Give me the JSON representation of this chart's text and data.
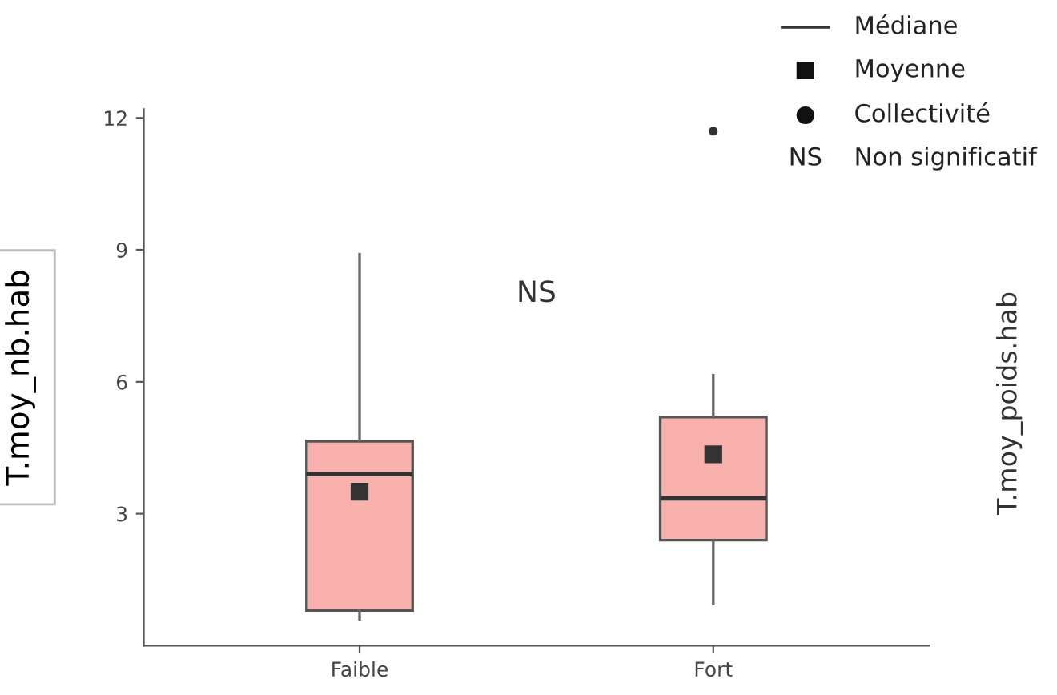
{
  "chart_data": {
    "type": "box",
    "ylabel": "T.moy_nb.hab",
    "y2label": "T.moy_poids.hab",
    "categories": [
      "Faible",
      "Fort"
    ],
    "series": [
      {
        "color": "#f8b1ad",
        "boxes": [
          {
            "low": 0.6,
            "q1": 0.8,
            "median": 3.9,
            "q3": 4.65,
            "high": 8.9,
            "mean": 3.5
          },
          {
            "low": 0.95,
            "q1": 2.4,
            "median": 3.35,
            "q3": 5.2,
            "high": 6.15,
            "mean": 4.35,
            "outliers": [
              11.7
            ]
          }
        ]
      }
    ],
    "ylim": [
      0,
      12.2
    ],
    "yticks": [
      3,
      6,
      9,
      12
    ],
    "grid": false,
    "annotations": [
      "Médiane",
      "Moyenne",
      "Collectivité",
      "NS",
      "Non significatif",
      "NS"
    ]
  }
}
